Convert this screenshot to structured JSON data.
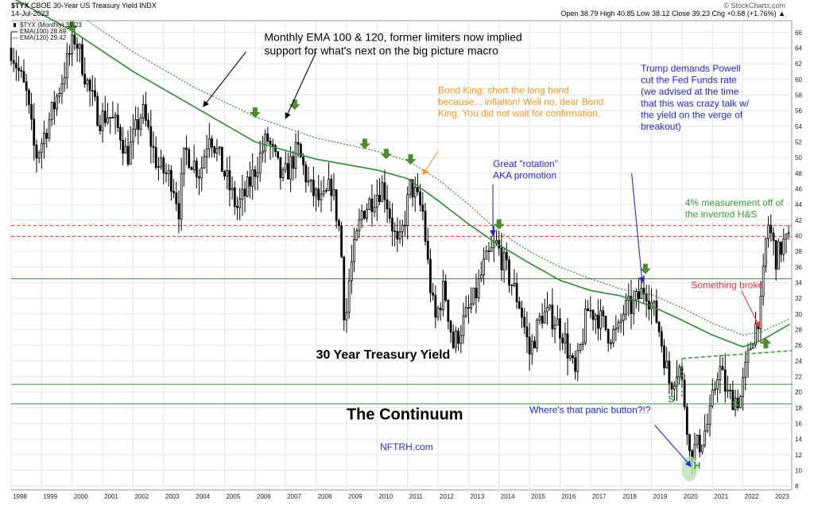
{
  "header": {
    "symbol": "$TYX",
    "name": "CBOE 30-Year US Treasury Yield",
    "exchange": "INDX",
    "date": "14-Jul-2023",
    "watermark": "© StockCharts.com",
    "ohlc_text": "Open 38.79  High 40.85  Low 38.12  Close 39.23  Chg +0.68 (+1.76%) ▲"
  },
  "legend": [
    {
      "label": "$TYX (Monthly) 39.23",
      "color": "#000000",
      "style": "candle"
    },
    {
      "label": "EMA(100) 28.69",
      "color": "#2e8b2e",
      "style": "solid"
    },
    {
      "label": "EMA(120) 29.42",
      "color": "#2e8b2e",
      "style": "dotted"
    }
  ],
  "chart_data": {
    "type": "candlestick",
    "interval": "monthly",
    "x_range": [
      1998,
      2023.6
    ],
    "ylim": [
      7.5,
      67.5
    ],
    "x_ticks": [
      "1998",
      "1999",
      "2000",
      "2001",
      "2002",
      "2003",
      "2004",
      "2005",
      "2006",
      "2007",
      "2008",
      "2009",
      "2010",
      "2011",
      "2012",
      "2013",
      "2014",
      "2015",
      "2016",
      "2017",
      "2018",
      "2019",
      "2020",
      "2021",
      "2022",
      "2023"
    ],
    "y_ticks": [
      8,
      10,
      12,
      14,
      16,
      18,
      20,
      22,
      24,
      26,
      28,
      30,
      32,
      34,
      36,
      38,
      40,
      42,
      44,
      46,
      48,
      50,
      52,
      54,
      56,
      58,
      60,
      62,
      64,
      66
    ],
    "grid": true,
    "price_path": [
      [
        1998.0,
        64.0
      ],
      [
        1998.5,
        58.0
      ],
      [
        1998.8,
        50.0
      ],
      [
        1999.0,
        52.0
      ],
      [
        1999.4,
        56.5
      ],
      [
        1999.9,
        63.0
      ],
      [
        2000.1,
        65.5
      ],
      [
        2000.6,
        58.0
      ],
      [
        2000.9,
        55.0
      ],
      [
        2001.2,
        55.5
      ],
      [
        2001.6,
        53.0
      ],
      [
        2001.8,
        50.0
      ],
      [
        2002.3,
        56.0
      ],
      [
        2002.8,
        49.0
      ],
      [
        2003.3,
        47.0
      ],
      [
        2003.5,
        43.5
      ],
      [
        2003.7,
        51.0
      ],
      [
        2004.2,
        48.0
      ],
      [
        2004.5,
        53.5
      ],
      [
        2004.9,
        49.0
      ],
      [
        2005.4,
        43.5
      ],
      [
        2005.7,
        45.5
      ],
      [
        2006.1,
        49.5
      ],
      [
        2006.4,
        52.5
      ],
      [
        2006.9,
        47.0
      ],
      [
        2007.4,
        51.0
      ],
      [
        2007.8,
        46.0
      ],
      [
        2008.2,
        44.0
      ],
      [
        2008.5,
        46.5
      ],
      [
        2008.8,
        40.0
      ],
      [
        2008.95,
        28.0
      ],
      [
        2009.1,
        35.0
      ],
      [
        2009.5,
        43.0
      ],
      [
        2009.8,
        44.5
      ],
      [
        2010.2,
        46.5
      ],
      [
        2010.7,
        38.0
      ],
      [
        2010.9,
        42.0
      ],
      [
        2011.1,
        46.5
      ],
      [
        2011.5,
        43.0
      ],
      [
        2011.7,
        35.0
      ],
      [
        2011.9,
        29.0
      ],
      [
        2012.2,
        33.5
      ],
      [
        2012.5,
        26.0
      ],
      [
        2012.9,
        29.5
      ],
      [
        2013.2,
        32.0
      ],
      [
        2013.5,
        36.0
      ],
      [
        2013.9,
        39.0
      ],
      [
        2014.2,
        36.0
      ],
      [
        2014.7,
        31.0
      ],
      [
        2015.0,
        25.0
      ],
      [
        2015.4,
        30.0
      ],
      [
        2015.8,
        29.5
      ],
      [
        2016.1,
        27.5
      ],
      [
        2016.5,
        22.0
      ],
      [
        2016.9,
        30.5
      ],
      [
        2017.2,
        30.0
      ],
      [
        2017.6,
        27.5
      ],
      [
        2017.9,
        27.5
      ],
      [
        2018.1,
        30.5
      ],
      [
        2018.4,
        31.0
      ],
      [
        2018.8,
        33.5
      ],
      [
        2019.2,
        29.0
      ],
      [
        2019.6,
        21.0
      ],
      [
        2019.9,
        23.5
      ],
      [
        2020.15,
        17.0
      ],
      [
        2020.25,
        12.0
      ],
      [
        2020.6,
        13.5
      ],
      [
        2020.9,
        16.5
      ],
      [
        2021.2,
        23.5
      ],
      [
        2021.5,
        19.5
      ],
      [
        2021.9,
        19.0
      ],
      [
        2022.0,
        21.0
      ],
      [
        2022.3,
        27.0
      ],
      [
        2022.6,
        31.0
      ],
      [
        2022.8,
        42.0
      ],
      [
        2022.95,
        39.5
      ],
      [
        2023.1,
        37.0
      ],
      [
        2023.3,
        39.0
      ],
      [
        2023.54,
        39.23
      ]
    ],
    "ema100": [
      [
        1998.0,
        70.5
      ],
      [
        2000.0,
        66.2
      ],
      [
        2002.0,
        61.0
      ],
      [
        2004.0,
        56.5
      ],
      [
        2006.0,
        52.0
      ],
      [
        2008.0,
        49.8
      ],
      [
        2010.0,
        48.4
      ],
      [
        2011.0,
        47.3
      ],
      [
        2012.0,
        44.5
      ],
      [
        2013.0,
        41.5
      ],
      [
        2014.0,
        38.8
      ],
      [
        2015.0,
        36.5
      ],
      [
        2016.0,
        34.3
      ],
      [
        2017.0,
        33.0
      ],
      [
        2018.0,
        32.3
      ],
      [
        2019.0,
        31.0
      ],
      [
        2020.0,
        29.2
      ],
      [
        2021.0,
        27.3
      ],
      [
        2022.0,
        25.8
      ],
      [
        2022.6,
        26.6
      ],
      [
        2023.54,
        28.69
      ]
    ],
    "ema120": [
      [
        2000.5,
        67.5
      ],
      [
        2002.0,
        63.5
      ],
      [
        2004.0,
        59.0
      ],
      [
        2006.0,
        55.2
      ],
      [
        2008.0,
        52.5
      ],
      [
        2010.0,
        50.8
      ],
      [
        2011.0,
        49.6
      ],
      [
        2012.0,
        47.2
      ],
      [
        2013.0,
        44.0
      ],
      [
        2014.0,
        40.5
      ],
      [
        2015.0,
        38.0
      ],
      [
        2016.0,
        36.0
      ],
      [
        2017.0,
        34.5
      ],
      [
        2018.0,
        33.2
      ],
      [
        2019.0,
        32.5
      ],
      [
        2020.0,
        30.8
      ],
      [
        2021.0,
        28.8
      ],
      [
        2022.0,
        27.3
      ],
      [
        2022.6,
        27.7
      ],
      [
        2023.54,
        29.42
      ]
    ],
    "horizontal_lines": [
      {
        "y": 41.3,
        "color": "#e8333a",
        "style": "dashed"
      },
      {
        "y": 39.9,
        "color": "#e8333a",
        "style": "dashed"
      },
      {
        "y": 34.5,
        "color": "#3a9a3a",
        "style": "solid"
      },
      {
        "y": 21.0,
        "color": "#3a9a3a",
        "style": "solid"
      },
      {
        "y": 18.5,
        "color": "#3a9a3a",
        "style": "solid"
      }
    ],
    "neckline": {
      "from": [
        2020.0,
        24.3
      ],
      "to": [
        2023.6,
        25.3
      ],
      "color": "#3a9a3a",
      "style": "dashed"
    },
    "down_arrows": [
      [
        2000.0,
        66.5
      ],
      [
        2006.0,
        55.5
      ],
      [
        2007.3,
        56.5
      ],
      [
        2009.6,
        51.5
      ],
      [
        2010.3,
        50.2
      ],
      [
        2011.1,
        49.5
      ],
      [
        2014.0,
        41.2
      ],
      [
        2018.8,
        35.5
      ]
    ],
    "up_arrows": [
      [
        2022.75,
        26.5
      ]
    ],
    "annotations": [
      {
        "id": "ema-note",
        "lines": [
          "Monthly EMA 100 & 120, former limiters now implied",
          "support for what's next on the big picture macro"
        ],
        "color": "#000000",
        "size": 14,
        "x": 2006.3,
        "y": 64.9
      },
      {
        "id": "bond-king",
        "lines": [
          "Bond King: short the long bond",
          "because... inflation! Well no, dear Bond",
          "King. You did not wait for confirmation."
        ],
        "color": "#f0961e",
        "size": 12,
        "x": 2012.0,
        "y": 58.2
      },
      {
        "id": "trump",
        "lines": [
          "Trump demands Powell",
          "cut the Fed Funds rate",
          "(we advised at the time",
          "that this was crazy talk w/",
          "the yield on the verge of",
          "breakout)"
        ],
        "color": "#2424d8",
        "size": 12,
        "x": 2018.65,
        "y": 61.0
      },
      {
        "id": "rotation",
        "lines": [
          "Great \"rotation\"",
          "AKA promotion"
        ],
        "color": "#2424d8",
        "size": 12,
        "x": 2013.8,
        "y": 48.8
      },
      {
        "id": "measurement",
        "lines": [
          "4% measurement off of",
          "the inverted H&S"
        ],
        "color": "#3a9a3a",
        "size": 12,
        "x": 2020.1,
        "y": 43.8
      },
      {
        "id": "broke",
        "lines": [
          "Something broke"
        ],
        "color": "#e8333a",
        "size": 12,
        "x": 2020.3,
        "y": 33.3
      },
      {
        "id": "title30",
        "lines": [
          "30 Year Treasury Yield"
        ],
        "color": "#000000",
        "size": 16,
        "x": 2008.0,
        "y": 24.3,
        "bold": true
      },
      {
        "id": "continuum",
        "lines": [
          "The Continuum"
        ],
        "color": "#000000",
        "size": 20,
        "x": 2009.0,
        "y": 16.5,
        "bold": true
      },
      {
        "id": "nftrh",
        "lines": [
          "NFTRH.com"
        ],
        "color": "#2424d8",
        "size": 12,
        "x": 2010.1,
        "y": 12.6
      },
      {
        "id": "panic",
        "lines": [
          "Where's that panic button?!?"
        ],
        "color": "#2424d8",
        "size": 12,
        "x": 2015.0,
        "y": 17.3
      },
      {
        "id": "s-left",
        "lines": [
          "S"
        ],
        "color": "#3a9a3a",
        "size": 12,
        "x": 2019.65,
        "y": 18.7,
        "bold": true
      },
      {
        "id": "s-right",
        "lines": [
          "S"
        ],
        "color": "#3a9a3a",
        "size": 12,
        "x": 2021.75,
        "y": 18.1,
        "bold": true
      },
      {
        "id": "h",
        "lines": [
          "H"
        ],
        "color": "#3a9a3a",
        "size": 12,
        "x": 2020.5,
        "y": 10.2,
        "bold": true
      }
    ],
    "pointer_arrows": [
      {
        "from": [
          2005.7,
          63.5
        ],
        "to": [
          2004.3,
          56.5
        ],
        "color": "#000000"
      },
      {
        "from": [
          2008.0,
          63.5
        ],
        "to": [
          2007.0,
          55.0
        ],
        "color": "#000000"
      },
      {
        "from": [
          2012.0,
          50.8
        ],
        "to": [
          2011.5,
          47.8
        ],
        "color": "#f0961e"
      },
      {
        "from": [
          2013.8,
          46.6
        ],
        "to": [
          2013.8,
          40.0
        ],
        "color": "#2424d8"
      },
      {
        "from": [
          2018.35,
          48.0
        ],
        "to": [
          2018.7,
          34.0
        ],
        "color": "#2424d8"
      },
      {
        "from": [
          2021.95,
          33.0
        ],
        "to": [
          2022.55,
          28.3
        ],
        "color": "#e8333a"
      },
      {
        "from": [
          2019.1,
          15.8
        ],
        "to": [
          2020.3,
          10.5
        ],
        "color": "#2424d8"
      }
    ],
    "h_highlight": {
      "x": 2020.25,
      "y": 10.2,
      "color": "#b9e3b0"
    }
  }
}
